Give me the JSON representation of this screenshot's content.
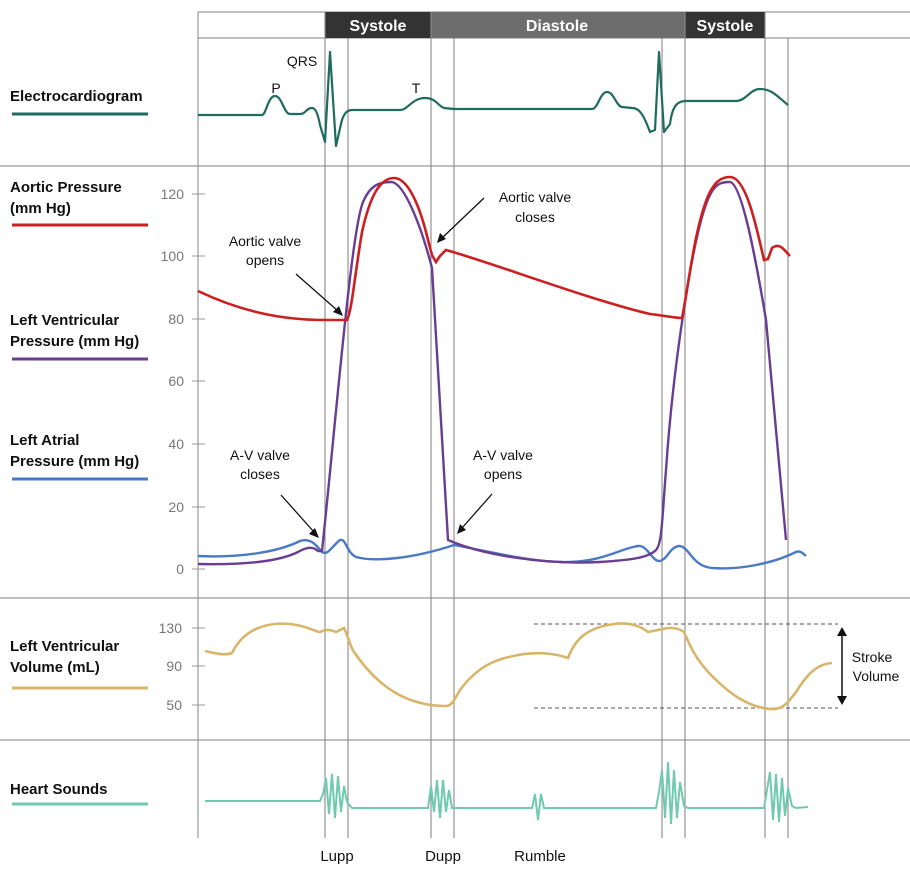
{
  "phases": [
    {
      "label": "Systole",
      "color": "#333333"
    },
    {
      "label": "Diastole",
      "color": "#6d6d6d"
    },
    {
      "label": "Systole",
      "color": "#333333"
    }
  ],
  "rows": {
    "ecg": {
      "label": "Electrocardiogram",
      "color": "#1f6b5e"
    },
    "aortic": {
      "label_lines": [
        "Aortic Pressure",
        "(mm Hg)"
      ],
      "color": "#cc1f1f"
    },
    "lv_pressure": {
      "label_lines": [
        "Left Ventricular",
        "Pressure (mm Hg)"
      ],
      "color": "#6a3d92"
    },
    "atrial": {
      "label_lines": [
        "Left Atrial",
        "Pressure (mm Hg)"
      ],
      "color": "#4a7ac4"
    },
    "lv_volume": {
      "label_lines": [
        "Left Ventricular",
        "Volume (mL)"
      ],
      "color": "#d8b56a"
    },
    "heart_sounds": {
      "label": "Heart Sounds",
      "color": "#6fcab0"
    }
  },
  "ecg_waves": {
    "p": "P",
    "qrs": "QRS",
    "t": "T"
  },
  "pressure_ticks": [
    "0",
    "20",
    "40",
    "60",
    "80",
    "100",
    "120"
  ],
  "volume_ticks": [
    "50",
    "90",
    "130"
  ],
  "annotations": {
    "aortic_opens": [
      "Aortic valve",
      "opens"
    ],
    "aortic_closes": [
      "Aortic valve",
      "closes"
    ],
    "av_closes": [
      "A-V valve",
      "closes"
    ],
    "av_opens": [
      "A-V valve",
      "opens"
    ],
    "stroke_volume": [
      "Stroke",
      "Volume"
    ]
  },
  "sounds": [
    "Lupp",
    "Dupp",
    "Rumble"
  ]
}
